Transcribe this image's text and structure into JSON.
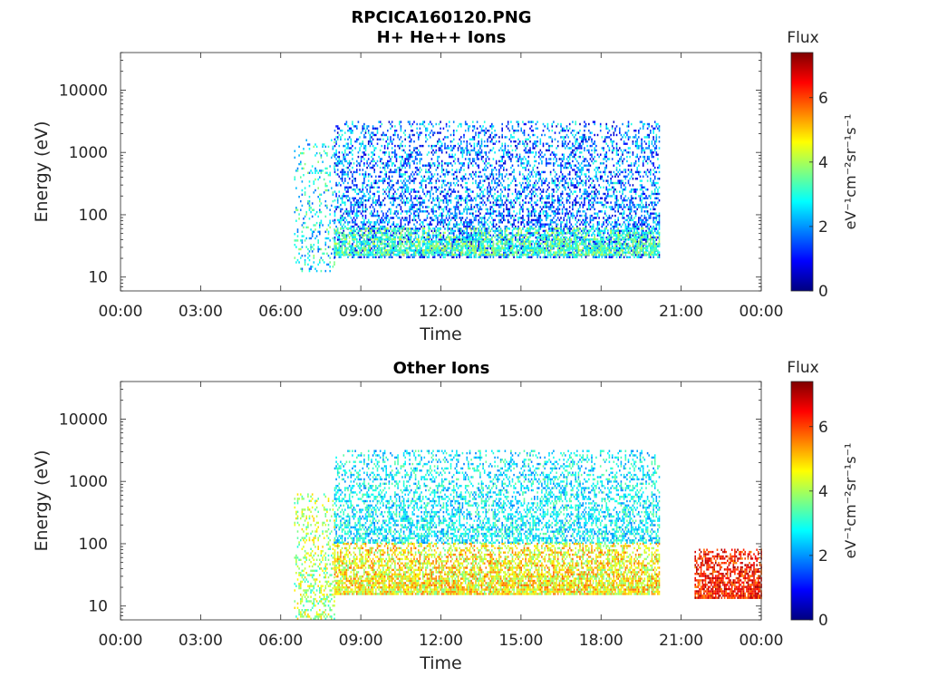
{
  "figure": {
    "title_line1": "RPCICA160120.PNG"
  },
  "colors": {
    "axes": "#262626",
    "background": "#ffffff",
    "colormap": "jet"
  },
  "chart_data": [
    {
      "type": "heatmap",
      "title": "H+ He++ Ions",
      "xlabel": "Time",
      "ylabel": "Energy (eV)",
      "x_ticks": [
        "00:00",
        "03:00",
        "06:00",
        "09:00",
        "12:00",
        "15:00",
        "18:00",
        "21:00",
        "00:00"
      ],
      "x_range_hours": [
        0,
        24
      ],
      "y_scale": "log",
      "y_range": [
        6,
        40000
      ],
      "y_ticks": [
        {
          "value": 10,
          "label": "10"
        },
        {
          "value": 100,
          "label": "100"
        },
        {
          "value": 1000,
          "label": "1000"
        },
        {
          "value": 10000,
          "label": "10000"
        }
      ],
      "colorbar": {
        "title": "Flux",
        "units_label": "eV⁻¹cm⁻²sr⁻¹s⁻¹",
        "range": [
          0,
          7.4
        ],
        "ticks": [
          0,
          2,
          4,
          6
        ]
      },
      "data_regions": [
        {
          "label": "sparse start",
          "t_start_h": 6.5,
          "t_end_h": 8.0,
          "e_min": 12,
          "e_max": 1600,
          "flux_low": 1.5,
          "flux_high": 4.0,
          "density": 0.25
        },
        {
          "label": "main activity",
          "t_start_h": 8.0,
          "t_end_h": 20.2,
          "e_min": 20,
          "e_max": 3000,
          "flux_low": 0.4,
          "flux_high": 3.2,
          "density": 0.55
        },
        {
          "label": "low-energy band",
          "t_start_h": 8.0,
          "t_end_h": 20.2,
          "e_min": 22,
          "e_max": 60,
          "flux_low": 2.5,
          "flux_high": 4.3,
          "density": 0.75
        }
      ]
    },
    {
      "type": "heatmap",
      "title": "Other Ions",
      "xlabel": "Time",
      "ylabel": "Energy (eV)",
      "x_ticks": [
        "00:00",
        "03:00",
        "06:00",
        "09:00",
        "12:00",
        "15:00",
        "18:00",
        "21:00",
        "00:00"
      ],
      "x_range_hours": [
        0,
        24
      ],
      "y_scale": "log",
      "y_range": [
        6,
        40000
      ],
      "y_ticks": [
        {
          "value": 10,
          "label": "10"
        },
        {
          "value": 100,
          "label": "100"
        },
        {
          "value": 1000,
          "label": "1000"
        },
        {
          "value": 10000,
          "label": "10000"
        }
      ],
      "colorbar": {
        "title": "Flux",
        "units_label": "eV⁻¹cm⁻²sr⁻¹s⁻¹",
        "range": [
          0,
          7.4
        ],
        "ticks": [
          0,
          2,
          4,
          6
        ]
      },
      "data_regions": [
        {
          "label": "start",
          "t_start_h": 6.5,
          "t_end_h": 8.0,
          "e_min": 6,
          "e_max": 600,
          "flux_low": 3.0,
          "flux_high": 5.0,
          "density": 0.35
        },
        {
          "label": "upper cloud",
          "t_start_h": 8.0,
          "t_end_h": 20.2,
          "e_min": 100,
          "e_max": 3000,
          "flux_low": 1.8,
          "flux_high": 3.6,
          "density": 0.55
        },
        {
          "label": "mid band",
          "t_start_h": 8.0,
          "t_end_h": 20.2,
          "e_min": 15,
          "e_max": 100,
          "flux_low": 3.5,
          "flux_high": 5.8,
          "density": 0.9
        },
        {
          "label": "late burst",
          "t_start_h": 21.5,
          "t_end_h": 24.0,
          "e_min": 13,
          "e_max": 80,
          "flux_low": 5.5,
          "flux_high": 7.2,
          "density": 0.9
        }
      ]
    }
  ]
}
